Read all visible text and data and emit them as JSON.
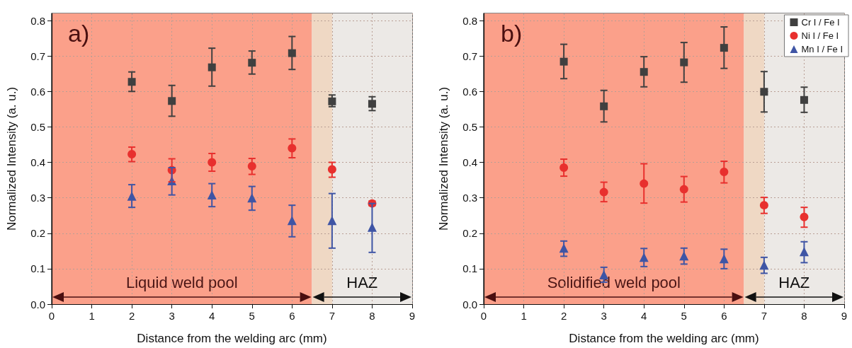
{
  "chart_data": [
    {
      "type": "scatter",
      "xlabel": "Distance from the welding arc (mm)",
      "ylabel": "Normalized Intensity (a. u.)",
      "annotations": [
        "a)"
      ],
      "xlim": [
        0,
        9
      ],
      "xticks": [
        0,
        1,
        2,
        3,
        4,
        5,
        6,
        7,
        8,
        9
      ],
      "ylim": [
        0,
        0.82
      ],
      "yticks": [
        {
          "value": 0,
          "label": "0.0"
        },
        0.1,
        0.2,
        0.3,
        0.4,
        0.5,
        0.6,
        0.7,
        0.8
      ],
      "grid": true,
      "legend": false,
      "bands": [
        {
          "axis": "x",
          "from": 0,
          "to": 6.5,
          "label": "Liquid weld pool",
          "color": "#fba08a"
        },
        {
          "axis": "x",
          "from": 6.5,
          "to": 9,
          "label": "HAZ",
          "color": "#ece9e6"
        },
        {
          "axis": "x",
          "from": 6.5,
          "to": 7,
          "label": null,
          "color": "#efd8c4"
        }
      ],
      "series": [
        {
          "color": "#404040",
          "marker": "square",
          "x": [
            2,
            3,
            4,
            5,
            6,
            7,
            8
          ],
          "values": [
            0.627,
            0.573,
            0.668,
            0.681,
            0.708,
            0.572,
            0.565
          ],
          "errors": [
            [
              0.6,
              0.655
            ],
            [
              0.53,
              0.617
            ],
            [
              0.615,
              0.722
            ],
            [
              0.649,
              0.714
            ],
            [
              0.662,
              0.755
            ],
            [
              0.557,
              0.59
            ],
            [
              0.546,
              0.585
            ]
          ]
        },
        {
          "color": "#e8302e",
          "marker": "circle",
          "x": [
            2,
            3,
            4,
            5,
            6,
            7,
            8
          ],
          "values": [
            0.423,
            0.378,
            0.4,
            0.389,
            0.44,
            0.38,
            0.284
          ],
          "errors": [
            [
              0.402,
              0.443
            ],
            [
              0.345,
              0.41
            ],
            [
              0.375,
              0.425
            ],
            [
              0.366,
              0.411
            ],
            [
              0.413,
              0.466
            ],
            [
              0.358,
              0.4
            ],
            [
              0.278,
              0.291
            ]
          ]
        },
        {
          "color": "#3f55a5",
          "marker": "triangle",
          "x": [
            2,
            3,
            4,
            5,
            6,
            7,
            8
          ],
          "values": [
            0.305,
            0.348,
            0.308,
            0.3,
            0.236,
            0.236,
            0.217
          ],
          "errors": [
            [
              0.273,
              0.337
            ],
            [
              0.308,
              0.385
            ],
            [
              0.275,
              0.34
            ],
            [
              0.265,
              0.332
            ],
            [
              0.19,
              0.279
            ],
            [
              0.158,
              0.312
            ],
            [
              0.146,
              0.284
            ]
          ]
        }
      ]
    },
    {
      "type": "scatter",
      "xlabel": "Distance from the welding arc (mm)",
      "ylabel": "Normalized Intensity (a. u.)",
      "annotations": [
        "b)"
      ],
      "xlim": [
        0,
        9
      ],
      "xticks": [
        0,
        1,
        2,
        3,
        4,
        5,
        6,
        7,
        8,
        9
      ],
      "ylim": [
        0,
        0.82
      ],
      "yticks": [
        {
          "value": 0,
          "label": "0.0"
        },
        0.1,
        0.2,
        0.3,
        0.4,
        0.5,
        0.6,
        0.7,
        0.8
      ],
      "grid": true,
      "legend": "top right",
      "bands": [
        {
          "axis": "x",
          "from": 0,
          "to": 6.5,
          "label": "Solidified weld pool",
          "color": "#fba08a"
        },
        {
          "axis": "x",
          "from": 6.5,
          "to": 9,
          "label": "HAZ",
          "color": "#ece9e6"
        },
        {
          "axis": "x",
          "from": 6.5,
          "to": 7,
          "label": null,
          "color": "#efd8c4"
        }
      ],
      "series": [
        {
          "name": "Cr I / Fe I",
          "color": "#404040",
          "marker": "square",
          "x": [
            2,
            3,
            4,
            5,
            6,
            7,
            8
          ],
          "values": [
            0.684,
            0.558,
            0.655,
            0.682,
            0.723,
            0.599,
            0.576
          ],
          "errors": [
            [
              0.636,
              0.733
            ],
            [
              0.514,
              0.603
            ],
            [
              0.613,
              0.698
            ],
            [
              0.626,
              0.738
            ],
            [
              0.665,
              0.782
            ],
            [
              0.542,
              0.656
            ],
            [
              0.541,
              0.612
            ]
          ]
        },
        {
          "name": "Ni I / Fe I",
          "color": "#e8302e",
          "marker": "circle",
          "x": [
            2,
            3,
            4,
            5,
            6,
            7,
            8
          ],
          "values": [
            0.385,
            0.316,
            0.34,
            0.324,
            0.373,
            0.279,
            0.246
          ],
          "errors": [
            [
              0.361,
              0.409
            ],
            [
              0.289,
              0.344
            ],
            [
              0.285,
              0.396
            ],
            [
              0.288,
              0.36
            ],
            [
              0.342,
              0.403
            ],
            [
              0.256,
              0.301
            ],
            [
              0.217,
              0.273
            ]
          ]
        },
        {
          "name": "Mn I / Fe I",
          "color": "#3f55a5",
          "marker": "triangle",
          "x": [
            2,
            3,
            4,
            5,
            6,
            7,
            8
          ],
          "values": [
            0.158,
            0.083,
            0.132,
            0.136,
            0.128,
            0.11,
            0.148
          ],
          "errors": [
            [
              0.135,
              0.178
            ],
            [
              0.062,
              0.104
            ],
            [
              0.106,
              0.157
            ],
            [
              0.113,
              0.158
            ],
            [
              0.1,
              0.155
            ],
            [
              0.087,
              0.132
            ],
            [
              0.117,
              0.176
            ]
          ]
        }
      ]
    }
  ]
}
